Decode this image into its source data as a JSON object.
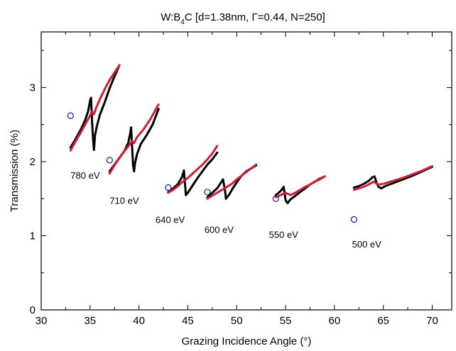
{
  "chart_data": {
    "type": "scatter",
    "title": "W:B",
    "title_sub": "4",
    "title_rest": "C [d=1.38nm, Γ=0.44, N=250]",
    "xlabel": "Grazing Incidence Angle (°)",
    "ylabel": "Transmission (%)",
    "xlim": [
      30,
      72
    ],
    "ylim": [
      0,
      3.75
    ],
    "xticks": [
      30,
      35,
      40,
      45,
      50,
      55,
      60,
      65,
      70
    ],
    "yticks": [
      0,
      1,
      2,
      3
    ],
    "grid": false,
    "colors": {
      "measured": "#000000",
      "fit": "#cc1f3c",
      "reference": "#1a1a8c"
    },
    "segments": [
      {
        "energy": "780 eV",
        "label_pos": [
          33.0,
          1.77
        ],
        "reference": [
          33.0,
          2.62
        ],
        "measured": [
          [
            33.0,
            2.19
          ],
          [
            33.5,
            2.3
          ],
          [
            34.0,
            2.42
          ],
          [
            34.5,
            2.56
          ],
          [
            34.8,
            2.68
          ],
          [
            35.0,
            2.82
          ],
          [
            35.1,
            2.86
          ],
          [
            35.2,
            2.55
          ],
          [
            35.3,
            2.32
          ],
          [
            35.4,
            2.16
          ],
          [
            35.5,
            2.35
          ],
          [
            35.7,
            2.48
          ],
          [
            36.0,
            2.63
          ],
          [
            36.5,
            2.8
          ],
          [
            37.0,
            2.99
          ],
          [
            37.5,
            3.15
          ],
          [
            38.0,
            3.3
          ]
        ],
        "fit": [
          [
            33.0,
            2.15
          ],
          [
            33.5,
            2.27
          ],
          [
            34.0,
            2.38
          ],
          [
            34.5,
            2.5
          ],
          [
            35.0,
            2.62
          ],
          [
            35.2,
            2.68
          ],
          [
            35.4,
            2.64
          ],
          [
            35.6,
            2.72
          ],
          [
            36.0,
            2.84
          ],
          [
            36.5,
            2.98
          ],
          [
            37.0,
            3.1
          ],
          [
            37.5,
            3.2
          ],
          [
            38.0,
            3.3
          ]
        ]
      },
      {
        "energy": "710 eV",
        "label_pos": [
          37.0,
          1.43
        ],
        "reference": [
          37.0,
          2.02
        ],
        "measured": [
          [
            37.0,
            1.87
          ],
          [
            37.5,
            1.96
          ],
          [
            38.0,
            2.05
          ],
          [
            38.5,
            2.14
          ],
          [
            38.9,
            2.25
          ],
          [
            39.1,
            2.38
          ],
          [
            39.2,
            2.46
          ],
          [
            39.3,
            2.2
          ],
          [
            39.4,
            1.95
          ],
          [
            39.5,
            1.87
          ],
          [
            39.6,
            1.98
          ],
          [
            39.8,
            2.1
          ],
          [
            40.2,
            2.24
          ],
          [
            40.8,
            2.36
          ],
          [
            41.4,
            2.5
          ],
          [
            42.0,
            2.71
          ]
        ],
        "fit": [
          [
            37.0,
            1.84
          ],
          [
            37.5,
            1.95
          ],
          [
            38.0,
            2.05
          ],
          [
            38.5,
            2.14
          ],
          [
            39.0,
            2.22
          ],
          [
            39.3,
            2.28
          ],
          [
            39.5,
            2.25
          ],
          [
            39.8,
            2.33
          ],
          [
            40.5,
            2.44
          ],
          [
            41.2,
            2.58
          ],
          [
            42.0,
            2.77
          ]
        ]
      },
      {
        "energy": "640 eV",
        "label_pos": [
          41.7,
          1.17
        ],
        "reference": [
          43.0,
          1.65
        ],
        "measured": [
          [
            43.0,
            1.59
          ],
          [
            43.5,
            1.64
          ],
          [
            44.0,
            1.7
          ],
          [
            44.4,
            1.79
          ],
          [
            44.6,
            1.88
          ],
          [
            44.7,
            1.72
          ],
          [
            44.8,
            1.55
          ],
          [
            45.0,
            1.58
          ],
          [
            45.5,
            1.68
          ],
          [
            46.0,
            1.78
          ],
          [
            46.5,
            1.87
          ],
          [
            47.0,
            1.96
          ],
          [
            47.5,
            2.03
          ],
          [
            48.0,
            2.12
          ]
        ],
        "fit": [
          [
            43.0,
            1.58
          ],
          [
            43.5,
            1.62
          ],
          [
            44.0,
            1.67
          ],
          [
            44.5,
            1.73
          ],
          [
            45.0,
            1.78
          ],
          [
            45.5,
            1.84
          ],
          [
            46.0,
            1.9
          ],
          [
            46.5,
            1.96
          ],
          [
            47.0,
            2.03
          ],
          [
            47.5,
            2.11
          ],
          [
            48.0,
            2.21
          ]
        ]
      },
      {
        "energy": "600 eV",
        "label_pos": [
          46.7,
          1.04
        ],
        "reference": [
          47.0,
          1.59
        ],
        "measured": [
          [
            47.0,
            1.52
          ],
          [
            47.5,
            1.58
          ],
          [
            48.0,
            1.64
          ],
          [
            48.3,
            1.7
          ],
          [
            48.6,
            1.76
          ],
          [
            48.8,
            1.62
          ],
          [
            48.9,
            1.5
          ],
          [
            49.2,
            1.55
          ],
          [
            49.6,
            1.64
          ],
          [
            50.0,
            1.72
          ],
          [
            50.5,
            1.81
          ],
          [
            51.0,
            1.87
          ],
          [
            51.5,
            1.91
          ],
          [
            52.0,
            1.95
          ]
        ],
        "fit": [
          [
            47.0,
            1.5
          ],
          [
            47.5,
            1.54
          ],
          [
            48.0,
            1.58
          ],
          [
            48.5,
            1.62
          ],
          [
            49.0,
            1.66
          ],
          [
            49.5,
            1.7
          ],
          [
            50.0,
            1.76
          ],
          [
            50.5,
            1.81
          ],
          [
            51.0,
            1.86
          ],
          [
            51.5,
            1.91
          ],
          [
            52.0,
            1.96
          ]
        ]
      },
      {
        "energy": "550 eV",
        "label_pos": [
          53.3,
          0.97
        ],
        "reference": [
          54.0,
          1.5
        ],
        "measured": [
          [
            54.0,
            1.55
          ],
          [
            54.3,
            1.58
          ],
          [
            54.6,
            1.62
          ],
          [
            54.8,
            1.66
          ],
          [
            54.9,
            1.58
          ],
          [
            55.0,
            1.48
          ],
          [
            55.2,
            1.44
          ],
          [
            55.5,
            1.49
          ],
          [
            56.0,
            1.54
          ],
          [
            56.5,
            1.59
          ],
          [
            57.0,
            1.64
          ],
          [
            57.5,
            1.69
          ],
          [
            58.0,
            1.73
          ],
          [
            58.5,
            1.77
          ],
          [
            59.0,
            1.8
          ]
        ],
        "fit": [
          [
            54.0,
            1.52
          ],
          [
            54.5,
            1.55
          ],
          [
            55.0,
            1.58
          ],
          [
            55.5,
            1.55
          ],
          [
            56.0,
            1.58
          ],
          [
            56.5,
            1.62
          ],
          [
            57.0,
            1.66
          ],
          [
            57.5,
            1.69
          ],
          [
            58.0,
            1.73
          ],
          [
            58.5,
            1.76
          ],
          [
            59.0,
            1.8
          ]
        ]
      },
      {
        "energy": "500 eV",
        "label_pos": [
          61.8,
          0.84
        ],
        "reference": [
          62.0,
          1.22
        ],
        "measured": [
          [
            62.0,
            1.65
          ],
          [
            62.5,
            1.67
          ],
          [
            63.0,
            1.7
          ],
          [
            63.5,
            1.74
          ],
          [
            63.9,
            1.79
          ],
          [
            64.1,
            1.8
          ],
          [
            64.3,
            1.72
          ],
          [
            64.5,
            1.66
          ],
          [
            64.8,
            1.64
          ],
          [
            65.2,
            1.67
          ],
          [
            66.0,
            1.71
          ],
          [
            67.0,
            1.76
          ],
          [
            68.0,
            1.81
          ],
          [
            69.0,
            1.87
          ],
          [
            70.0,
            1.93
          ]
        ],
        "fit": [
          [
            62.0,
            1.62
          ],
          [
            62.5,
            1.64
          ],
          [
            63.0,
            1.66
          ],
          [
            63.5,
            1.69
          ],
          [
            64.0,
            1.73
          ],
          [
            64.5,
            1.69
          ],
          [
            65.0,
            1.7
          ],
          [
            66.0,
            1.74
          ],
          [
            67.0,
            1.78
          ],
          [
            68.0,
            1.83
          ],
          [
            69.0,
            1.88
          ],
          [
            70.0,
            1.94
          ]
        ]
      }
    ]
  }
}
